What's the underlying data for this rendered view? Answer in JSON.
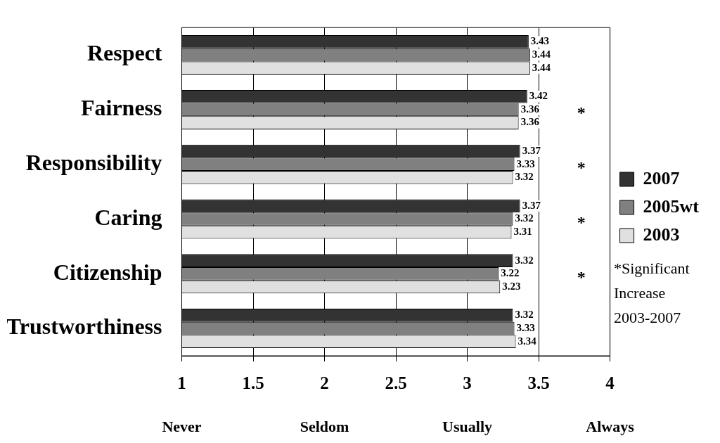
{
  "chart_data": {
    "type": "bar",
    "orientation": "horizontal",
    "categories": [
      "Respect",
      "Fairness",
      "Responsibility",
      "Caring",
      "Citizenship",
      "Trustworthiness"
    ],
    "series": [
      {
        "name": "2007",
        "color": "#333333",
        "values": [
          3.43,
          3.42,
          3.37,
          3.37,
          3.32,
          3.32
        ]
      },
      {
        "name": "2005wt",
        "color": "#808080",
        "values": [
          3.44,
          3.36,
          3.33,
          3.32,
          3.22,
          3.33
        ]
      },
      {
        "name": "2003",
        "color": "#e0e0e0",
        "values": [
          3.44,
          3.36,
          3.32,
          3.31,
          3.23,
          3.34
        ]
      }
    ],
    "xlim": [
      1,
      4
    ],
    "xticks": [
      1,
      1.5,
      2,
      2.5,
      3,
      3.5,
      4
    ],
    "xlabel": "Never Seldom Usually Always",
    "grid": "x",
    "legend": "right",
    "data_labels": true,
    "annotations": [
      "*",
      "*",
      "*",
      "*",
      "*Significant Increase 2003-2007"
    ]
  }
}
